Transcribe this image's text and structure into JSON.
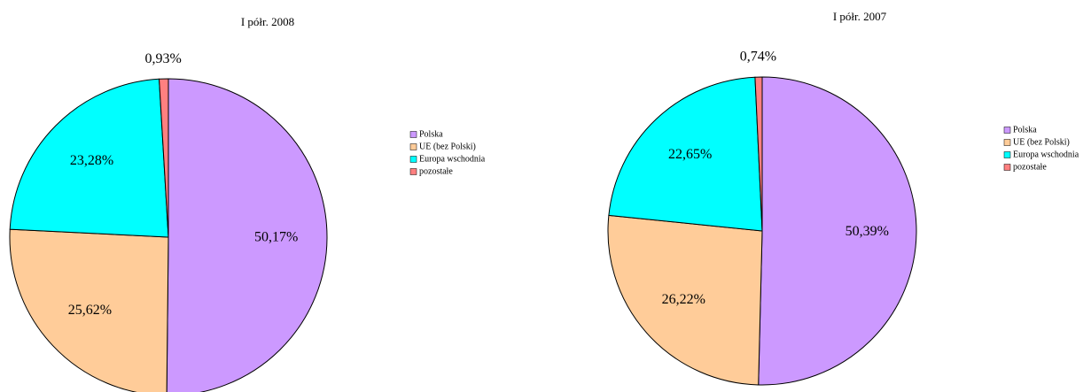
{
  "chart_data": [
    {
      "type": "pie",
      "title": "I półr. 2008",
      "categories": [
        "Polska",
        "UE (bez Polski)",
        "Europa wschodnia",
        "pozostałe"
      ],
      "values": [
        50.17,
        25.62,
        23.28,
        0.93
      ],
      "value_labels": [
        "50,17%",
        "25,62%",
        "23,28%",
        "0,93%"
      ],
      "colors": [
        "#cc99ff",
        "#ffcc99",
        "#00ffff",
        "#ff8080"
      ]
    },
    {
      "type": "pie",
      "title": "I półr. 2007",
      "categories": [
        "Polska",
        "UE (bez Polski)",
        "Europa wschodnia",
        "pozostałe"
      ],
      "values": [
        50.39,
        26.22,
        22.65,
        0.74
      ],
      "value_labels": [
        "50,39%",
        "26,22%",
        "22,65%",
        "0,74%"
      ],
      "colors": [
        "#cc99ff",
        "#ffcc99",
        "#00ffff",
        "#ff8080"
      ]
    }
  ]
}
